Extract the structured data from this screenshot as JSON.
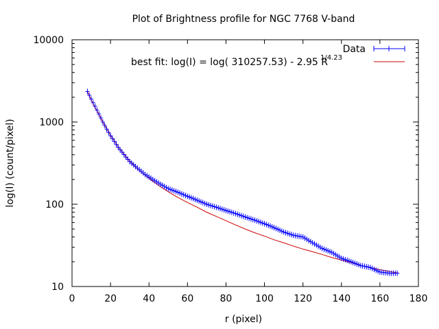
{
  "chart_data": {
    "type": "scatter",
    "title": "Plot of Brightness profile for NGC 7768 V-band",
    "xlabel": "r (pixel)",
    "ylabel": "log(I) (count/pixel)",
    "xlim": [
      0,
      180
    ],
    "ylim": [
      10,
      10000
    ],
    "yscale": "log",
    "xticks": [
      0,
      20,
      40,
      60,
      80,
      100,
      120,
      140,
      160,
      180
    ],
    "xtick_labels": [
      "0",
      "20",
      "40",
      "60",
      "80",
      "100",
      "120",
      "140",
      "160",
      "180"
    ],
    "yticks": [
      10,
      100,
      1000,
      10000
    ],
    "ytick_labels": [
      "10",
      "100",
      "1000",
      "10000"
    ],
    "legend_position": "top-right",
    "series": [
      {
        "name": "Data",
        "style": "points-with-errorbars",
        "color": "#0000ff",
        "x": [
          8,
          10,
          12,
          14,
          16,
          18,
          20,
          22,
          24,
          26,
          28,
          30,
          34,
          38,
          42,
          46,
          50,
          55,
          60,
          65,
          70,
          75,
          80,
          85,
          90,
          95,
          100,
          105,
          110,
          115,
          120,
          125,
          130,
          135,
          140,
          145,
          150,
          155,
          160,
          165,
          169
        ],
        "y": [
          2350,
          1900,
          1550,
          1250,
          1000,
          820,
          680,
          580,
          490,
          430,
          375,
          330,
          275,
          230,
          200,
          175,
          155,
          140,
          125,
          112,
          100,
          92,
          84,
          77,
          70,
          64,
          58,
          52,
          46,
          42,
          40,
          34,
          29,
          26,
          22,
          20,
          18,
          17,
          15,
          14.5,
          14.5
        ]
      },
      {
        "name": "best fit: log(I) = log( 310257.53) - 2.95 R",
        "legend_superscript": "1/4.23",
        "style": "line",
        "color": "#cc0000",
        "x": [
          8,
          10,
          12,
          14,
          16,
          18,
          20,
          22,
          24,
          26,
          28,
          30,
          34,
          38,
          42,
          46,
          50,
          55,
          60,
          65,
          70,
          75,
          80,
          85,
          90,
          95,
          100,
          105,
          110,
          115,
          120,
          125,
          130,
          135,
          140,
          145,
          150,
          155,
          160,
          165,
          170
        ],
        "y": [
          2350,
          1850,
          1500,
          1230,
          1000,
          830,
          690,
          590,
          500,
          435,
          380,
          335,
          270,
          225,
          190,
          163,
          142,
          121,
          105,
          92,
          80,
          71,
          63,
          56,
          50,
          45,
          41,
          37,
          34,
          31,
          28.5,
          26.5,
          24.5,
          22.5,
          21,
          19.5,
          18,
          17,
          16,
          15.2,
          14.5
        ]
      }
    ]
  }
}
